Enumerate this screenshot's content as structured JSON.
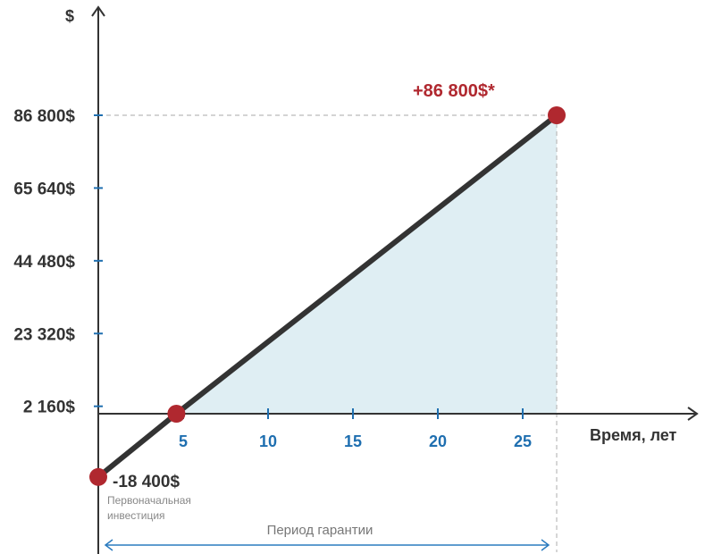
{
  "chart_data": {
    "type": "line",
    "title": "",
    "ylabel": "$",
    "xlabel": "Время, лет",
    "x_ticks": [
      5,
      10,
      15,
      20,
      25
    ],
    "y_ticks": [
      {
        "value": 2160,
        "label": "2 160$"
      },
      {
        "value": 23320,
        "label": "23 320$"
      },
      {
        "value": 44480,
        "label": "44 480$"
      },
      {
        "value": 65640,
        "label": "65 640$"
      },
      {
        "value": 86800,
        "label": "86 800$"
      }
    ],
    "series": [
      {
        "x": [
          0,
          4.6,
          27
        ],
        "y": [
          -18400,
          0,
          86800
        ]
      }
    ],
    "points": [
      {
        "x": 0,
        "y": -18400
      },
      {
        "x": 4.6,
        "y": 0
      },
      {
        "x": 27,
        "y": 86800
      }
    ],
    "shaded_area": {
      "x_from": 4.6,
      "x_to": 27,
      "color": "#dfeef3"
    },
    "annotations": {
      "end_value": "+86 800$*",
      "start_value": "-18 400$",
      "start_note_line1": "Первоначальная",
      "start_note_line2": "инвестиция",
      "period": "Период гарантии"
    },
    "grid": false,
    "colors": {
      "line": "#333333",
      "point": "#b0282f",
      "tick": "#1f6fb0",
      "fill": "#dfeef3",
      "dash": "#bbbbbb",
      "arrow": "#2a7bbf"
    }
  }
}
